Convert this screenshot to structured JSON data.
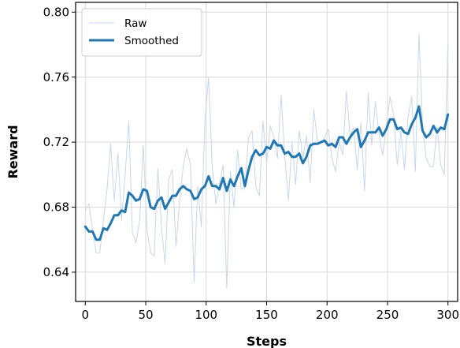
{
  "chart_data": {
    "type": "line",
    "title": "",
    "xlabel": "Steps",
    "ylabel": "Reward",
    "xlim": [
      -8,
      308
    ],
    "ylim": [
      0.622,
      0.806
    ],
    "xticks": [
      0,
      50,
      100,
      150,
      200,
      250,
      300
    ],
    "yticks": [
      0.64,
      0.68,
      0.72,
      0.76,
      0.8
    ],
    "ytick_labels": [
      "0.64",
      "0.68",
      "0.72",
      "0.76",
      "0.80"
    ],
    "grid": true,
    "legend_position": "top-left",
    "x": [
      0,
      3,
      6,
      9,
      12,
      15,
      18,
      21,
      24,
      27,
      30,
      33,
      36,
      39,
      42,
      45,
      48,
      51,
      54,
      57,
      60,
      63,
      66,
      69,
      72,
      75,
      78,
      81,
      84,
      87,
      90,
      93,
      96,
      99,
      102,
      105,
      108,
      111,
      114,
      117,
      120,
      123,
      126,
      129,
      132,
      135,
      138,
      141,
      144,
      147,
      150,
      153,
      156,
      159,
      162,
      165,
      168,
      171,
      174,
      177,
      180,
      183,
      186,
      189,
      192,
      195,
      198,
      201,
      204,
      207,
      210,
      213,
      216,
      219,
      222,
      225,
      228,
      231,
      234,
      237,
      240,
      243,
      246,
      249,
      252,
      255,
      258,
      261,
      264,
      267,
      270,
      273,
      276,
      279,
      282,
      285,
      288,
      291,
      294,
      297,
      300
    ],
    "series": [
      {
        "name": "Raw",
        "color": "#c6d7ea",
        "values": [
          0.678,
          0.682,
          0.666,
          0.652,
          0.652,
          0.672,
          0.691,
          0.719,
          0.684,
          0.713,
          0.672,
          0.7,
          0.733,
          0.664,
          0.658,
          0.672,
          0.718,
          0.666,
          0.652,
          0.65,
          0.704,
          0.668,
          0.645,
          0.697,
          0.703,
          0.656,
          0.683,
          0.705,
          0.716,
          0.706,
          0.634,
          0.693,
          0.668,
          0.733,
          0.76,
          0.705,
          0.682,
          0.694,
          0.706,
          0.63,
          0.702,
          0.68,
          0.715,
          0.691,
          0.692,
          0.723,
          0.727,
          0.693,
          0.687,
          0.733,
          0.707,
          0.73,
          0.723,
          0.71,
          0.749,
          0.712,
          0.684,
          0.72,
          0.694,
          0.727,
          0.71,
          0.724,
          0.695,
          0.74,
          0.721,
          0.719,
          0.723,
          0.728,
          0.71,
          0.702,
          0.72,
          0.712,
          0.751,
          0.724,
          0.729,
          0.703,
          0.732,
          0.69,
          0.75,
          0.718,
          0.745,
          0.725,
          0.712,
          0.729,
          0.748,
          0.737,
          0.706,
          0.727,
          0.703,
          0.736,
          0.748,
          0.702,
          0.787,
          0.73,
          0.71,
          0.705,
          0.705,
          0.73,
          0.706,
          0.7,
          0.78
        ]
      },
      {
        "name": "Smoothed",
        "color": "#1f77b4",
        "values": [
          0.668,
          0.665,
          0.665,
          0.66,
          0.66,
          0.667,
          0.666,
          0.67,
          0.675,
          0.675,
          0.678,
          0.677,
          0.689,
          0.687,
          0.684,
          0.685,
          0.691,
          0.69,
          0.68,
          0.679,
          0.684,
          0.686,
          0.679,
          0.683,
          0.687,
          0.687,
          0.691,
          0.693,
          0.691,
          0.69,
          0.685,
          0.686,
          0.691,
          0.693,
          0.699,
          0.693,
          0.693,
          0.691,
          0.698,
          0.69,
          0.697,
          0.693,
          0.699,
          0.704,
          0.693,
          0.703,
          0.711,
          0.715,
          0.712,
          0.713,
          0.717,
          0.716,
          0.721,
          0.718,
          0.718,
          0.713,
          0.714,
          0.711,
          0.711,
          0.713,
          0.707,
          0.711,
          0.718,
          0.719,
          0.719,
          0.72,
          0.721,
          0.718,
          0.719,
          0.717,
          0.723,
          0.723,
          0.719,
          0.723,
          0.726,
          0.728,
          0.717,
          0.721,
          0.726,
          0.726,
          0.726,
          0.729,
          0.724,
          0.728,
          0.734,
          0.734,
          0.728,
          0.729,
          0.726,
          0.725,
          0.731,
          0.735,
          0.742,
          0.727,
          0.723,
          0.725,
          0.73,
          0.726,
          0.729,
          0.728,
          0.737
        ]
      }
    ]
  }
}
